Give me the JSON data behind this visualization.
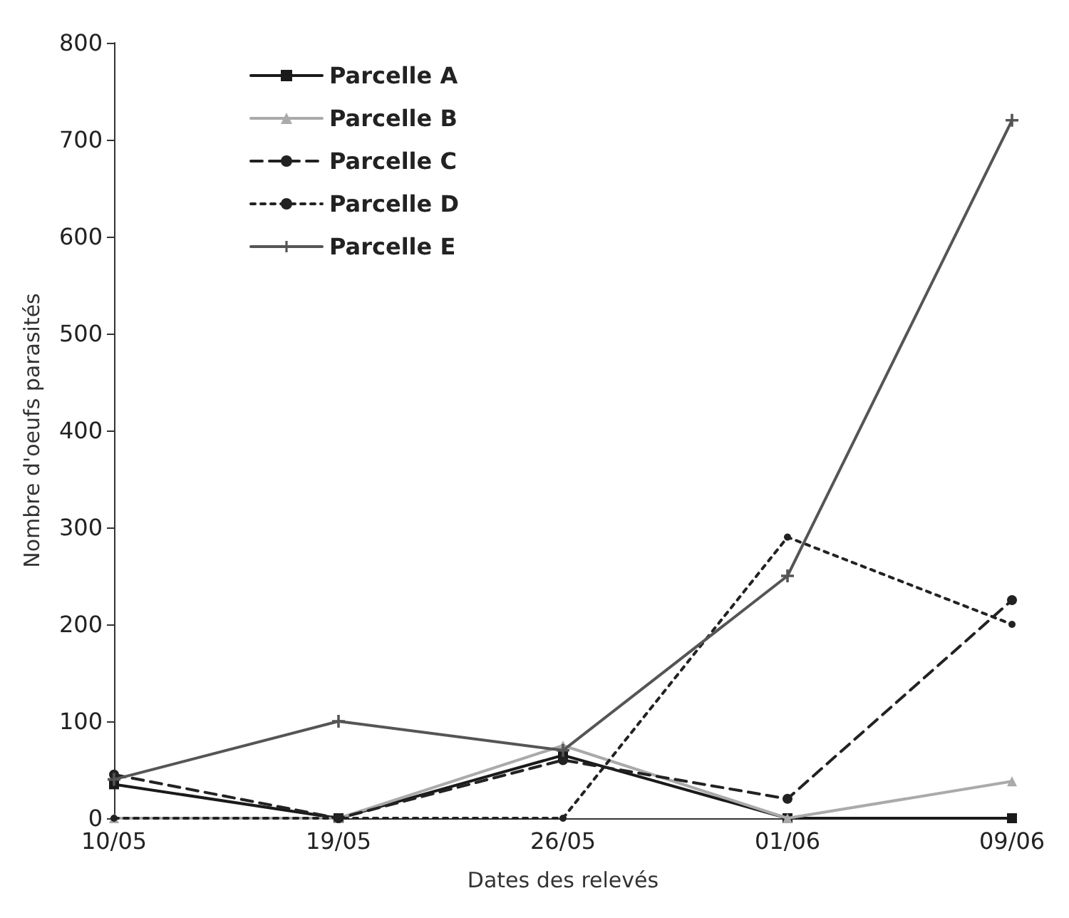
{
  "chart_data": {
    "type": "line",
    "xlabel": "Dates des relevés",
    "ylabel": "Nombre d'oeufs parasités",
    "categories": [
      "10/05",
      "19/05",
      "26/05",
      "01/06",
      "09/06"
    ],
    "ylim": [
      0,
      800
    ],
    "yticks": [
      0,
      100,
      200,
      300,
      400,
      500,
      600,
      700,
      800
    ],
    "grid": false,
    "legend": "top left",
    "series": [
      {
        "name": "Parcelle A",
        "color": "#1a1a1a",
        "marker": "square",
        "line_style": "solid",
        "values": [
          35,
          0,
          65,
          0,
          0
        ]
      },
      {
        "name": "Parcelle B",
        "color": "#aaaaaa",
        "marker": "triangle",
        "line_style": "solid",
        "values": [
          0,
          0,
          75,
          0,
          38
        ]
      },
      {
        "name": "Parcelle C",
        "color": "#222222",
        "marker": "circle",
        "line_style": "dashed",
        "values": [
          45,
          0,
          60,
          20,
          225
        ]
      },
      {
        "name": "Parcelle D",
        "color": "#222222",
        "marker": "circle",
        "line_style": "dotted",
        "values": [
          0,
          0,
          0,
          290,
          200
        ]
      },
      {
        "name": "Parcelle E",
        "color": "#555555",
        "marker": "cross",
        "line_style": "solid",
        "values": [
          40,
          100,
          70,
          250,
          720
        ]
      }
    ]
  }
}
